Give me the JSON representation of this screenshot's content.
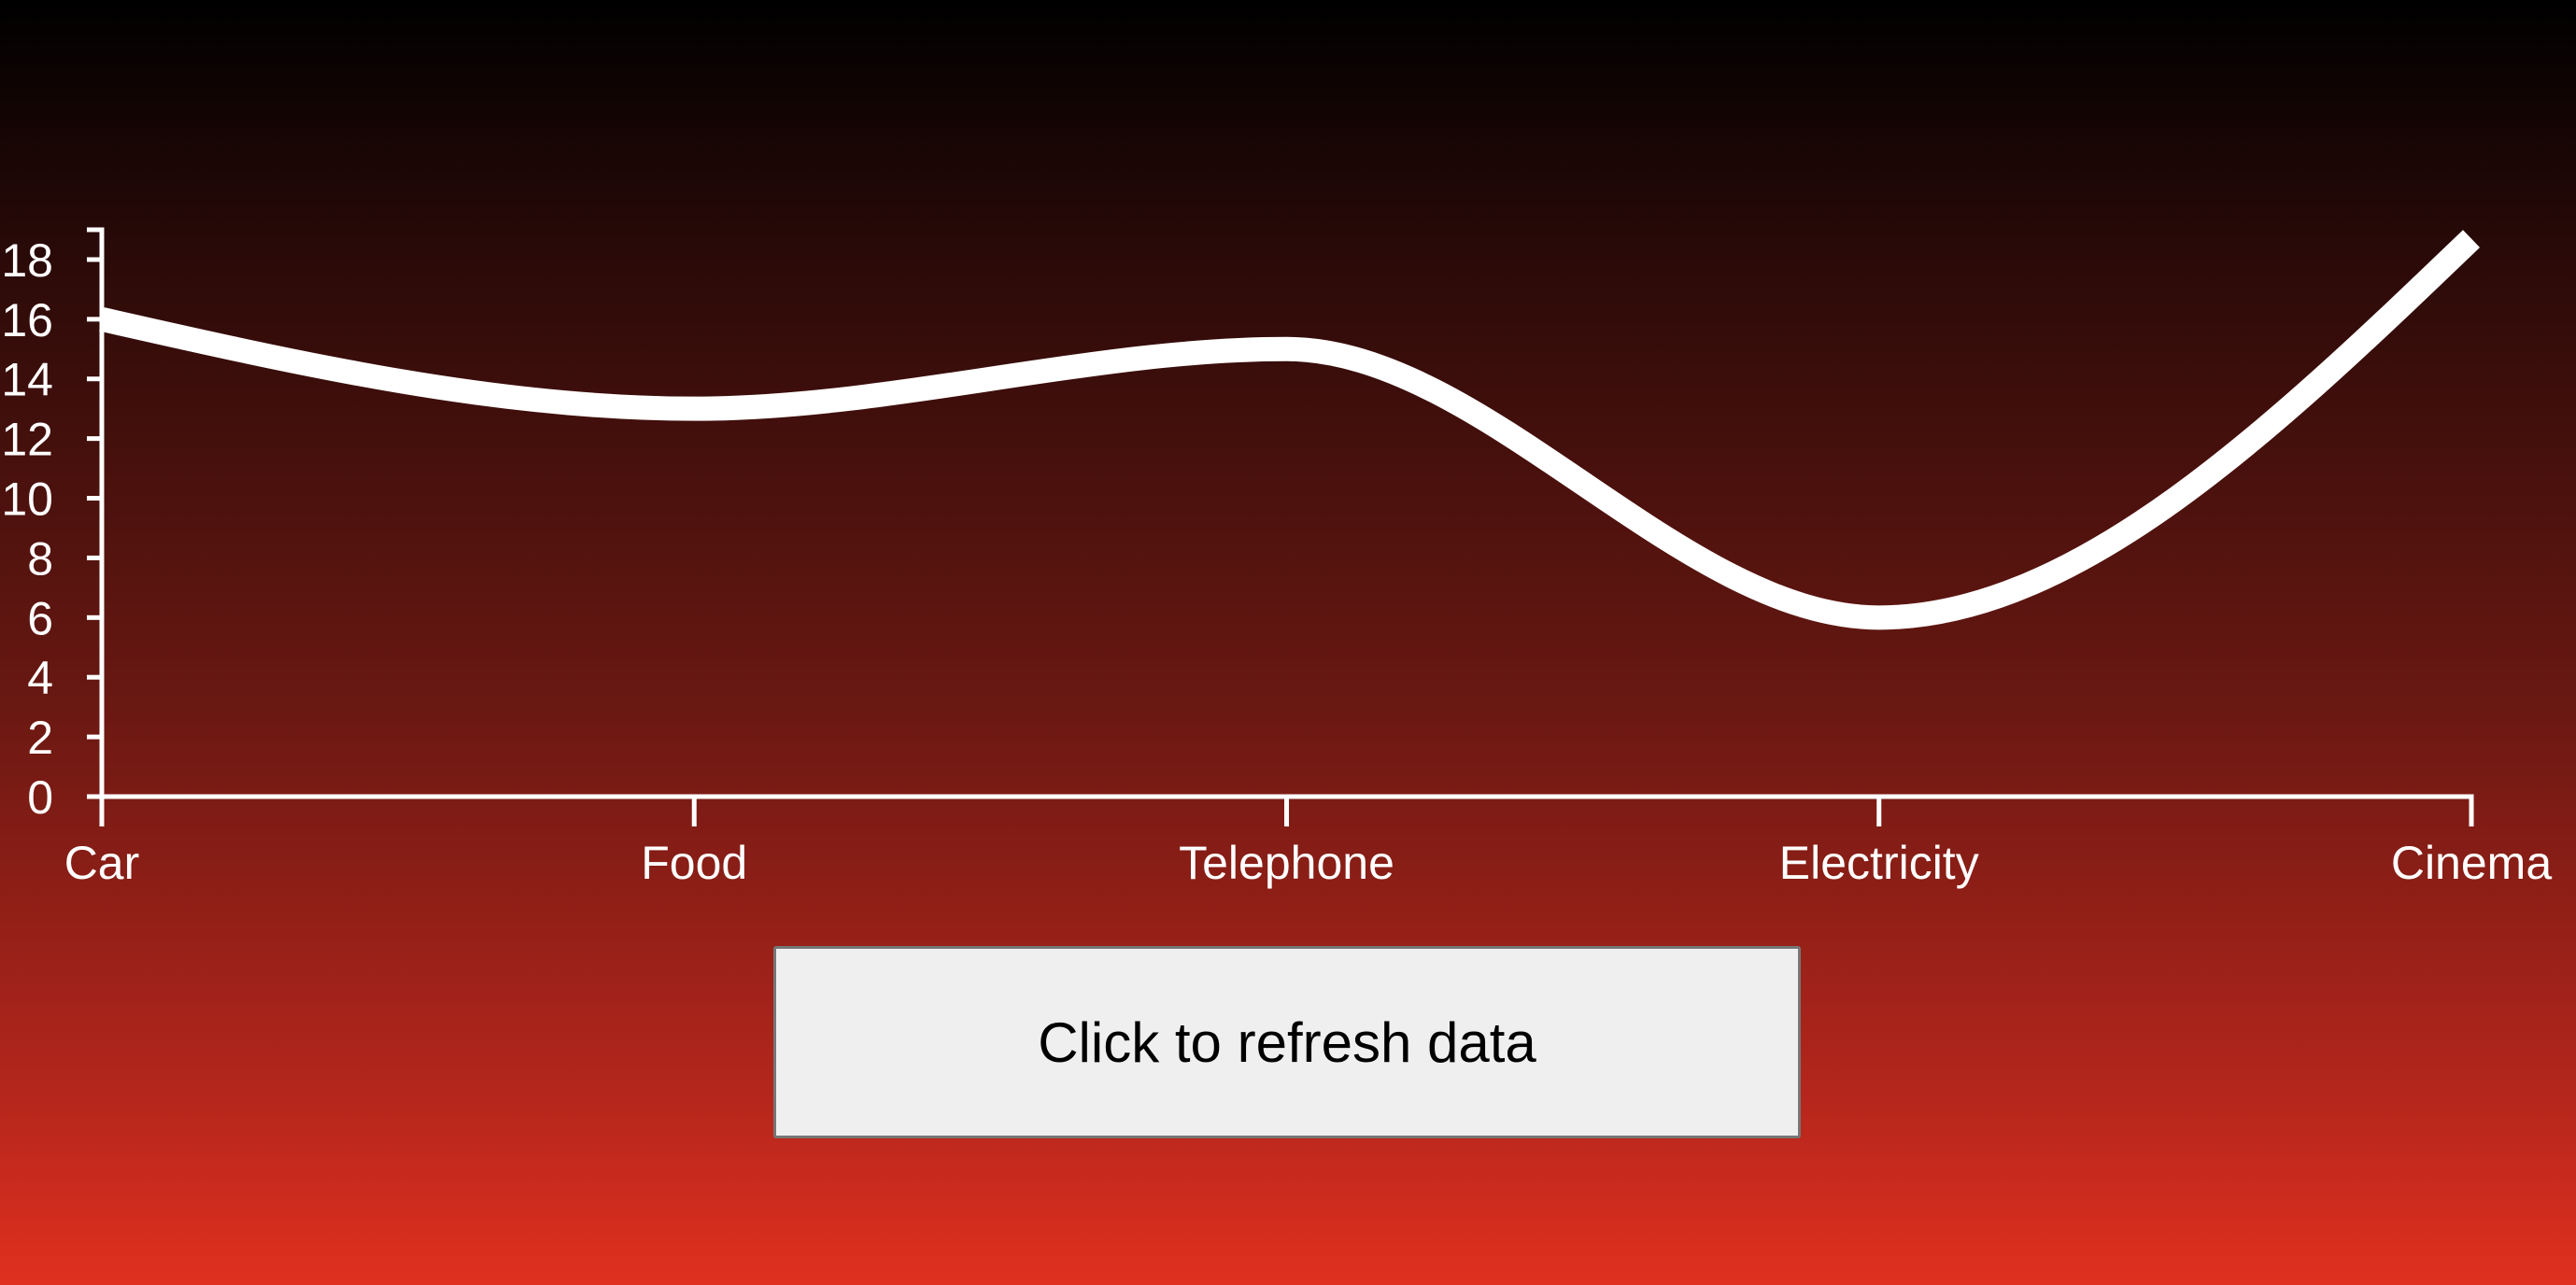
{
  "chart_data": {
    "type": "line",
    "categories": [
      "Car",
      "Food",
      "Telephone",
      "Electricity",
      "Cinema"
    ],
    "values": [
      16,
      13,
      15,
      6,
      18.7
    ],
    "title": "",
    "xlabel": "",
    "ylabel": "",
    "ylim": [
      0,
      19
    ],
    "yticks": [
      "0",
      "2",
      "4",
      "6",
      "8",
      "10",
      "12",
      "14",
      "16",
      "18"
    ],
    "grid": false,
    "curve": "monotone",
    "line_color": "#ffffff"
  },
  "button": {
    "label": "Click to refresh data"
  }
}
